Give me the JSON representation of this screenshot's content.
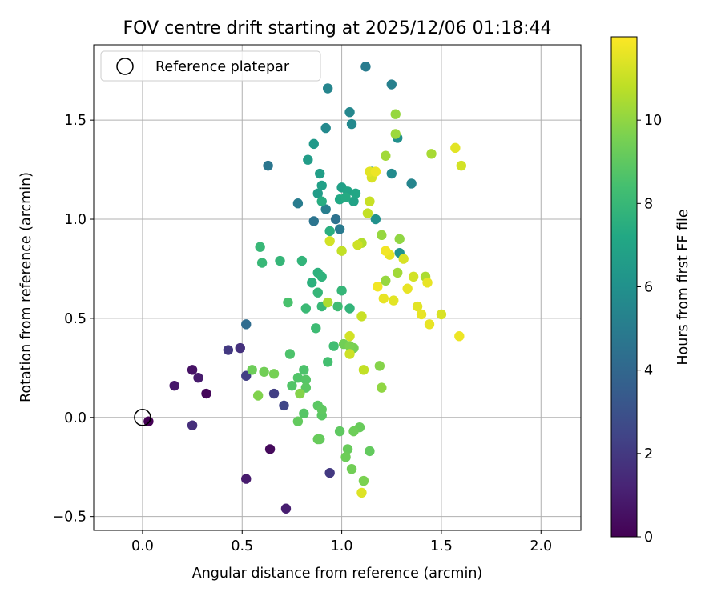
{
  "chart_data": {
    "type": "scatter",
    "title": "FOV centre drift starting at 2025/12/06 01:18:44",
    "xlabel": "Angular distance from reference (arcmin)",
    "ylabel": "Rotation from reference (arcmin)",
    "xlim": [
      -0.245,
      2.2
    ],
    "ylim": [
      -0.57,
      1.88
    ],
    "xticks": [
      0.0,
      0.5,
      1.0,
      1.5,
      2.0
    ],
    "xtick_labels": [
      "0.0",
      "0.5",
      "1.0",
      "1.5",
      "2.0"
    ],
    "yticks": [
      -0.5,
      0.0,
      0.5,
      1.0,
      1.5
    ],
    "ytick_labels": [
      "−0.5",
      "0.0",
      "0.5",
      "1.0",
      "1.5"
    ],
    "grid": true,
    "legend": {
      "position": "top-left",
      "entries": [
        {
          "label": "Reference platepar",
          "marker": "hollow-circle"
        }
      ]
    },
    "colorbar": {
      "label": "Hours from first FF file",
      "colormap": "viridis",
      "range": [
        0,
        12
      ],
      "ticks": [
        0,
        2,
        4,
        6,
        8,
        10
      ],
      "tick_labels": [
        "0",
        "2",
        "4",
        "6",
        "8",
        "10"
      ]
    },
    "reference_point": {
      "x": 0.0,
      "y": 0.0
    },
    "points": [
      [
        0.03,
        -0.02,
        0.0
      ],
      [
        0.16,
        0.16,
        0.8
      ],
      [
        0.25,
        0.24,
        0.6
      ],
      [
        0.28,
        0.2,
        0.9
      ],
      [
        0.32,
        0.12,
        0.2
      ],
      [
        0.25,
        -0.04,
        1.6
      ],
      [
        0.52,
        -0.31,
        0.9
      ],
      [
        0.64,
        -0.16,
        0.3
      ],
      [
        0.72,
        -0.46,
        1.0
      ],
      [
        0.94,
        -0.28,
        2.0
      ],
      [
        0.43,
        0.34,
        2.0
      ],
      [
        0.49,
        0.35,
        1.7
      ],
      [
        0.52,
        0.21,
        2.2
      ],
      [
        0.66,
        0.12,
        2.2
      ],
      [
        0.71,
        0.06,
        2.5
      ],
      [
        0.52,
        0.47,
        4.2
      ],
      [
        0.63,
        1.27,
        4.7
      ],
      [
        0.78,
        1.08,
        5.0
      ],
      [
        0.86,
        0.99,
        4.6
      ],
      [
        0.92,
        1.05,
        5.1
      ],
      [
        0.97,
        1.0,
        4.5
      ],
      [
        0.99,
        0.95,
        4.9
      ],
      [
        1.12,
        1.77,
        5.0
      ],
      [
        1.25,
        1.68,
        5.2
      ],
      [
        0.93,
        1.66,
        5.4
      ],
      [
        1.04,
        1.54,
        5.5
      ],
      [
        1.05,
        1.48,
        5.6
      ],
      [
        0.92,
        1.46,
        5.6
      ],
      [
        1.28,
        1.41,
        5.9
      ],
      [
        1.25,
        1.23,
        5.7
      ],
      [
        1.35,
        1.18,
        5.4
      ],
      [
        1.15,
        1.24,
        6.0
      ],
      [
        1.17,
        1.0,
        6.0
      ],
      [
        1.29,
        0.83,
        6.1
      ],
      [
        0.86,
        1.38,
        6.4
      ],
      [
        0.83,
        1.3,
        6.6
      ],
      [
        0.89,
        1.23,
        6.7
      ],
      [
        0.9,
        1.17,
        6.8
      ],
      [
        0.88,
        1.13,
        6.6
      ],
      [
        1.0,
        1.16,
        6.8
      ],
      [
        1.03,
        1.14,
        7.0
      ],
      [
        1.07,
        1.13,
        7.1
      ],
      [
        1.06,
        1.09,
        6.9
      ],
      [
        1.02,
        1.11,
        7.3
      ],
      [
        0.99,
        1.1,
        7.2
      ],
      [
        0.9,
        1.09,
        7.4
      ],
      [
        0.94,
        0.94,
        7.5
      ],
      [
        0.88,
        0.73,
        7.6
      ],
      [
        0.9,
        0.71,
        7.7
      ],
      [
        0.85,
        0.68,
        7.6
      ],
      [
        0.8,
        0.79,
        7.8
      ],
      [
        0.69,
        0.79,
        7.9
      ],
      [
        0.59,
        0.86,
        8.0
      ],
      [
        0.6,
        0.78,
        8.0
      ],
      [
        1.0,
        0.64,
        7.9
      ],
      [
        1.04,
        0.55,
        7.8
      ],
      [
        0.9,
        0.56,
        8.0
      ],
      [
        0.88,
        0.63,
        7.9
      ],
      [
        0.82,
        0.55,
        8.1
      ],
      [
        0.98,
        0.56,
        8.2
      ],
      [
        0.87,
        0.45,
        8.2
      ],
      [
        0.96,
        0.36,
        8.3
      ],
      [
        0.93,
        0.28,
        8.4
      ],
      [
        0.73,
        0.58,
        8.5
      ],
      [
        0.74,
        0.32,
        8.6
      ],
      [
        0.81,
        0.24,
        8.6
      ],
      [
        0.78,
        0.2,
        8.7
      ],
      [
        0.82,
        0.19,
        8.8
      ],
      [
        0.75,
        0.16,
        8.7
      ],
      [
        0.82,
        0.15,
        8.9
      ],
      [
        0.88,
        0.06,
        8.9
      ],
      [
        0.9,
        0.04,
        9.0
      ],
      [
        0.9,
        0.01,
        8.9
      ],
      [
        0.81,
        0.02,
        8.8
      ],
      [
        0.78,
        -0.02,
        9.1
      ],
      [
        0.88,
        -0.11,
        9.2
      ],
      [
        0.89,
        -0.11,
        9.1
      ],
      [
        0.99,
        -0.07,
        9.0
      ],
      [
        1.09,
        -0.05,
        9.2
      ],
      [
        1.06,
        -0.07,
        9.3
      ],
      [
        1.03,
        -0.16,
        9.2
      ],
      [
        1.02,
        -0.2,
        9.3
      ],
      [
        1.14,
        -0.17,
        9.1
      ],
      [
        1.05,
        -0.26,
        9.4
      ],
      [
        1.11,
        -0.32,
        9.6
      ],
      [
        0.55,
        0.24,
        9.3
      ],
      [
        0.61,
        0.23,
        9.4
      ],
      [
        0.66,
        0.22,
        9.5
      ],
      [
        0.58,
        0.11,
        9.7
      ],
      [
        0.79,
        0.12,
        9.8
      ],
      [
        1.01,
        0.37,
        9.4
      ],
      [
        1.04,
        0.36,
        9.6
      ],
      [
        1.06,
        0.35,
        9.5
      ],
      [
        1.19,
        0.26,
        9.8
      ],
      [
        1.2,
        0.15,
        10.0
      ],
      [
        1.22,
        0.69,
        10.1
      ],
      [
        1.28,
        0.73,
        10.3
      ],
      [
        1.29,
        0.9,
        10.0
      ],
      [
        1.2,
        0.92,
        10.1
      ],
      [
        1.1,
        0.88,
        10.6
      ],
      [
        1.27,
        1.53,
        10.1
      ],
      [
        1.27,
        1.43,
        10.2
      ],
      [
        1.22,
        1.32,
        10.3
      ],
      [
        1.45,
        1.33,
        10.4
      ],
      [
        1.42,
        0.71,
        10.5
      ],
      [
        0.93,
        0.58,
        10.5
      ],
      [
        1.1,
        0.51,
        11.0
      ],
      [
        1.11,
        0.24,
        10.9
      ],
      [
        1.1,
        -0.38,
        11.4
      ],
      [
        1.0,
        0.84,
        10.9
      ],
      [
        1.08,
        0.87,
        11.1
      ],
      [
        1.13,
        1.03,
        10.9
      ],
      [
        1.14,
        1.09,
        11.0
      ],
      [
        0.94,
        0.89,
        11.2
      ],
      [
        1.04,
        0.41,
        11.2
      ],
      [
        1.04,
        0.32,
        11.1
      ],
      [
        1.14,
        1.24,
        11.5
      ],
      [
        1.15,
        1.21,
        11.3
      ],
      [
        1.17,
        1.24,
        11.7
      ],
      [
        1.57,
        1.36,
        11.5
      ],
      [
        1.6,
        1.27,
        11.2
      ],
      [
        1.22,
        0.84,
        11.8
      ],
      [
        1.24,
        0.82,
        11.6
      ],
      [
        1.31,
        0.8,
        11.3
      ],
      [
        1.33,
        0.65,
        11.6
      ],
      [
        1.36,
        0.71,
        11.2
      ],
      [
        1.43,
        0.68,
        11.6
      ],
      [
        1.18,
        0.66,
        11.8
      ],
      [
        1.21,
        0.6,
        11.6
      ],
      [
        1.26,
        0.59,
        11.5
      ],
      [
        1.38,
        0.56,
        11.5
      ],
      [
        1.4,
        0.52,
        11.6
      ],
      [
        1.44,
        0.47,
        11.6
      ],
      [
        1.5,
        0.52,
        11.3
      ],
      [
        1.59,
        0.41,
        11.7
      ]
    ]
  }
}
